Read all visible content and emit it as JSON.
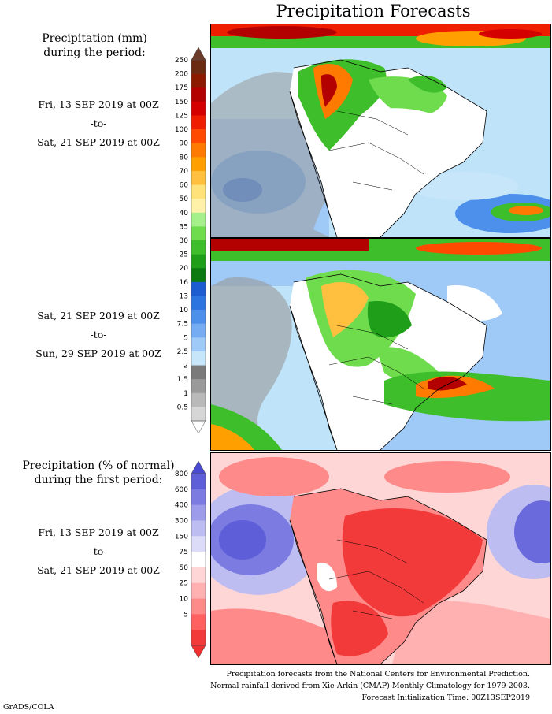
{
  "title": "Precipitation Forecasts",
  "section1": {
    "heading_line1": "Precipitation (mm)",
    "heading_line2": "during the period:",
    "period1": {
      "start": "Fri, 13 SEP 2019 at 00Z",
      "sep": "-to-",
      "end": "Sat, 21 SEP 2019 at 00Z"
    },
    "period2": {
      "start": "Sat, 21 SEP 2019 at 00Z",
      "sep": "-to-",
      "end": "Sun, 29 SEP 2019 at 00Z"
    },
    "colorbar": {
      "ticks": [
        "250",
        "200",
        "175",
        "150",
        "125",
        "100",
        "90",
        "80",
        "70",
        "60",
        "50",
        "40",
        "35",
        "30",
        "25",
        "20",
        "16",
        "13",
        "10",
        "7.5",
        "5",
        "2.5",
        "2",
        "1.5",
        "1",
        "0.5"
      ],
      "colors": [
        "#6b2a12",
        "#8c1a00",
        "#b30000",
        "#d40000",
        "#f01e00",
        "#ff4a00",
        "#ff7a00",
        "#ffa000",
        "#ffc040",
        "#ffe27a",
        "#fff2a8",
        "#a6f08c",
        "#6fdc4e",
        "#3fbe2c",
        "#1f9e1a",
        "#0c7a10",
        "#1c5bd0",
        "#2e74e0",
        "#4d90ec",
        "#76acf2",
        "#9fc9f6",
        "#c8e6fa",
        "#7a7a7a",
        "#9a9a9a",
        "#b9b9b9",
        "#d6d6d6"
      ],
      "top_color": "#6b3a28",
      "bottom_color": "#ffffff"
    }
  },
  "section2": {
    "heading_line1": "Precipitation (% of normal)",
    "heading_line2": "during the first period:",
    "period": {
      "start": "Fri, 13 SEP 2019 at 00Z",
      "sep": "-to-",
      "end": "Sat, 21 SEP 2019 at 00Z"
    },
    "colorbar": {
      "ticks": [
        "800",
        "600",
        "400",
        "300",
        "150",
        "75",
        "50",
        "25",
        "10",
        "5"
      ],
      "colors": [
        "#5e5ed8",
        "#7b7be2",
        "#9c9cea",
        "#bdbdf2",
        "#dcdcf8",
        "#ffffff",
        "#ffd6d6",
        "#ffb0b0",
        "#ff8a8a",
        "#ff6060",
        "#f23a3a"
      ],
      "top_color": "#4a4ad0",
      "bottom_color": "#ee3030"
    }
  },
  "footer": {
    "line1": "Precipitation forecasts from the National Centers for Environmental Prediction.",
    "line2": "Normal rainfall derived from Xie-Arkin (CMAP) Monthly Climatology for 1979-2003.",
    "line3": "Forecast Initialization Time: 00Z13SEP2019",
    "credit": "GrADS/COLA"
  }
}
